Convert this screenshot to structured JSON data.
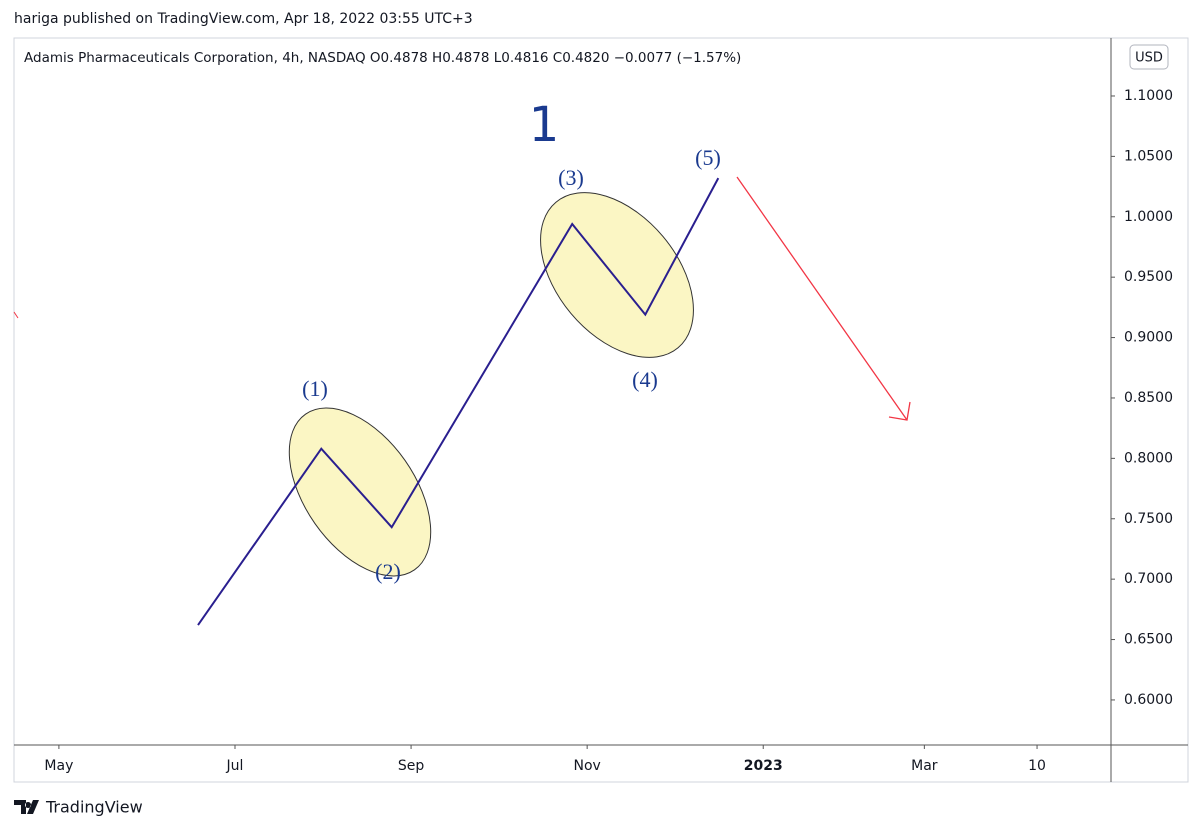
{
  "header": "hariga published on TradingView.com, Apr 18, 2022 03:55 UTC+3",
  "footer": "TradingView",
  "chart_data": {
    "type": "line",
    "title": "Adamis Pharmaceuticals Corporation, 4h, NASDAQ  O0.4878  H0.4878  L0.4816  C0.4820  −0.0077 (−1.57%)",
    "currency": "USD",
    "x": [
      6.58,
      7.98,
      8.78,
      10.83,
      11.66,
      12.49
    ],
    "values": [
      0.662,
      0.808,
      0.743,
      0.994,
      0.919,
      1.032
    ],
    "color": "#2a1f8f",
    "xlim": [
      4.49,
      16.95
    ],
    "ylim": [
      0.5627,
      1.148
    ],
    "xticks": [
      {
        "value": 5,
        "label": "May"
      },
      {
        "value": 7,
        "label": "Jul"
      },
      {
        "value": 9,
        "label": "Sep"
      },
      {
        "value": 11,
        "label": "Nov"
      },
      {
        "value": 13,
        "label": "2023"
      },
      {
        "value": 14.83,
        "label": "Mar"
      },
      {
        "value": 16.11,
        "label": "10"
      }
    ],
    "yticks": [
      {
        "value": 0.6,
        "label": "0.6000"
      },
      {
        "value": 0.65,
        "label": "0.6500"
      },
      {
        "value": 0.7,
        "label": "0.7000"
      },
      {
        "value": 0.75,
        "label": "0.7500"
      },
      {
        "value": 0.8,
        "label": "0.8000"
      },
      {
        "value": 0.85,
        "label": "0.8500"
      },
      {
        "value": 0.9,
        "label": "0.9000"
      },
      {
        "value": 0.95,
        "label": "0.9500"
      },
      {
        "value": 1.0,
        "label": "1.0000"
      },
      {
        "value": 1.05,
        "label": "1.0500"
      },
      {
        "value": 1.1,
        "label": "1.1000"
      }
    ],
    "annotations": [
      "1",
      "(1)",
      "(2)",
      "(3)",
      "(4)",
      "(5)"
    ]
  }
}
